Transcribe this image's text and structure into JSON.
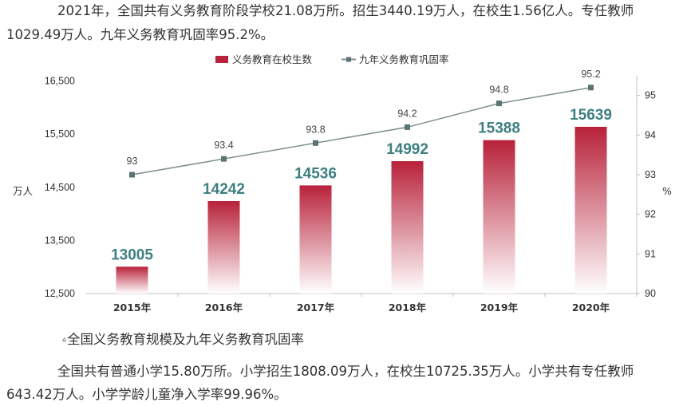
{
  "paragraphs": {
    "intro_line1": "2021年，全国共有义务教育阶段学校21.08万所。招生3440.19万人，在校生1.56亿人。专任教师",
    "intro_line2": "1029.49万人。九年义务教育巩固率95.2%。",
    "outro_line1": "全国共有普通小学15.80万所。小学招生1808.09万人，在校生10725.35万人。小学共有专任教师",
    "outro_line2": "643.42万人。小学学龄儿童净入学率99.96%。"
  },
  "caption": {
    "marker": "▵",
    "text": "全国义务教育规模及九年义务教育巩固率"
  },
  "colors": {
    "bar_top": "#b8223a",
    "bar_bottom": "#ffffff",
    "line": "#7f8f8f",
    "marker": "#5c7474",
    "bar_label": "#3e7f80",
    "axis": "#bfbfbf"
  },
  "chart_data": {
    "type": "bar",
    "categories": [
      "2015年",
      "2016年",
      "2017年",
      "2018年",
      "2019年",
      "2020年"
    ],
    "series": [
      {
        "name": "义务教育在校生数",
        "type": "bar",
        "axis": "left",
        "values": [
          13005,
          14242,
          14536,
          14992,
          15388,
          15639
        ]
      },
      {
        "name": "九年义务教育巩固率",
        "type": "line",
        "axis": "right",
        "values": [
          93,
          93.4,
          93.8,
          94.2,
          94.8,
          95.2
        ]
      }
    ],
    "y_left": {
      "unit": "万人",
      "ylim": [
        12500,
        16900
      ],
      "ticks": [
        12500,
        13500,
        14500,
        15500,
        16500
      ],
      "tick_labels": [
        "12,500",
        "13,500",
        "14,500",
        "15,500",
        "16,500"
      ]
    },
    "y_right": {
      "unit": "%",
      "ylim": [
        90,
        95.9
      ],
      "ticks": [
        90,
        91,
        92,
        93,
        94,
        95
      ]
    },
    "legend": "top",
    "grid": false
  }
}
